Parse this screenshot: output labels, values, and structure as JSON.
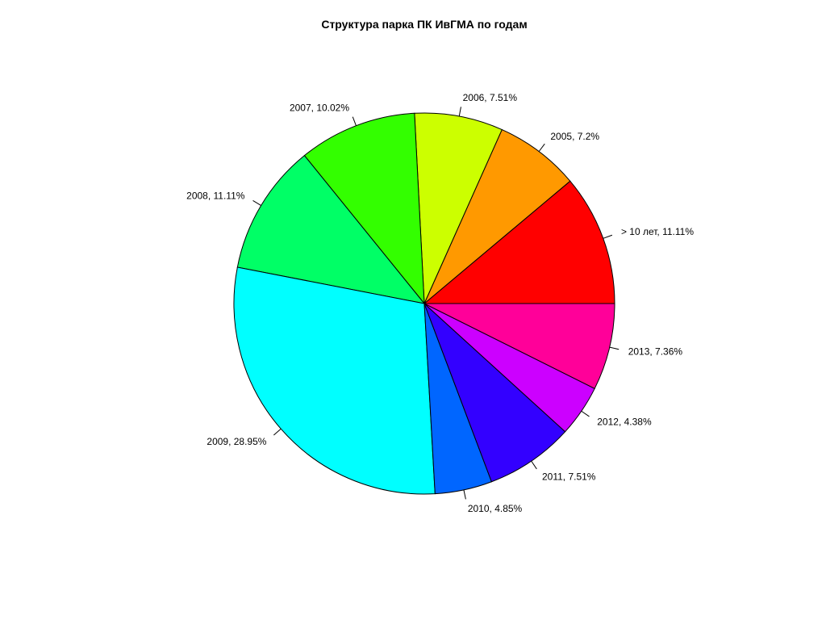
{
  "chart_data": {
    "type": "pie",
    "title": "Структура парка ПК ИвГМА по годам",
    "slices": [
      {
        "label": "> 10 лет, 11.11%",
        "value": 11.11,
        "color": "#FF0000"
      },
      {
        "label": "2005, 7.2%",
        "value": 7.2,
        "color": "#FF9900"
      },
      {
        "label": "2006, 7.51%",
        "value": 7.51,
        "color": "#CCFF00"
      },
      {
        "label": "2007, 10.02%",
        "value": 10.02,
        "color": "#33FF00"
      },
      {
        "label": "2008, 11.11%",
        "value": 11.11,
        "color": "#00FF66"
      },
      {
        "label": "2009, 28.95%",
        "value": 28.95,
        "color": "#00FFFF"
      },
      {
        "label": "2010, 4.85%",
        "value": 4.85,
        "color": "#0066FF"
      },
      {
        "label": "2011, 7.51%",
        "value": 7.51,
        "color": "#3300FF"
      },
      {
        "label": "2012, 4.38%",
        "value": 4.38,
        "color": "#CC00FF"
      },
      {
        "label": "2013, 7.36%",
        "value": 7.36,
        "color": "#FF0099"
      }
    ],
    "start": "3 o'clock",
    "direction": "counterclockwise"
  }
}
